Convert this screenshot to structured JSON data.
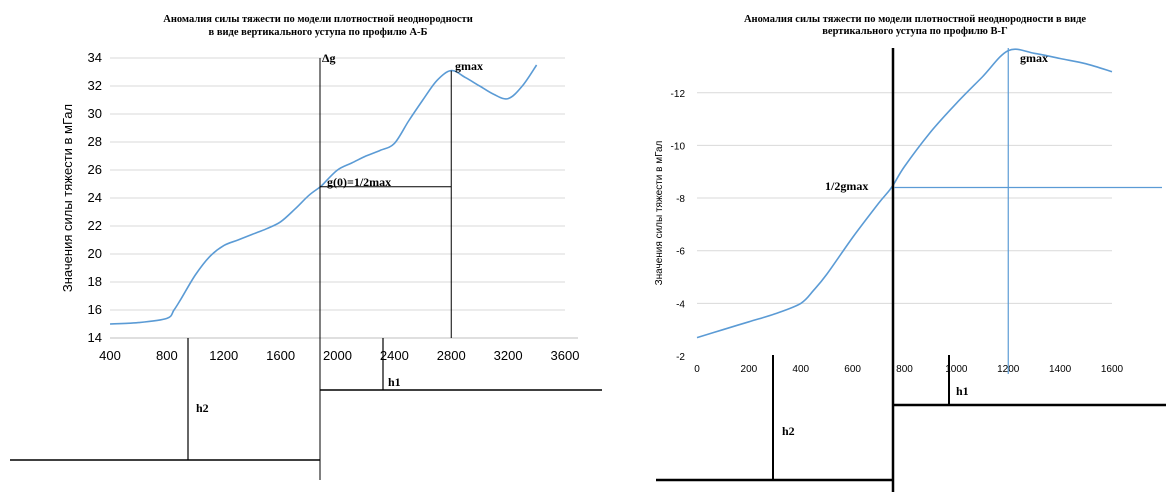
{
  "chart_data": [
    {
      "type": "line",
      "title_line1": "Аномалия силы тяжести по модели плотностной неоднородности",
      "title_line2": "в виде вертикального уступа по профилю А-Б",
      "ylabel": "Значения силы тяжести в мГал",
      "xlim": [
        400,
        3600
      ],
      "ylim": [
        14,
        34
      ],
      "x_ticks": [
        "400",
        "800",
        "1200",
        "1600",
        "2000",
        "2400",
        "2800",
        "3200",
        "3600"
      ],
      "y_ticks": [
        "14",
        "16",
        "18",
        "20",
        "22",
        "24",
        "26",
        "28",
        "30",
        "32",
        "34"
      ],
      "grid": true,
      "colors": {
        "series": "#5b9bd5"
      },
      "series": [
        {
          "x": [
            400,
            600,
            800,
            850,
            900,
            1000,
            1100,
            1200,
            1300,
            1400,
            1500,
            1600,
            1700,
            1800,
            1880,
            1900,
            2000,
            2100,
            2200,
            2300,
            2400,
            2500,
            2600,
            2700,
            2800,
            2900,
            3000,
            3100,
            3200,
            3300,
            3400
          ],
          "y": [
            15.0,
            15.1,
            15.4,
            16.0,
            16.8,
            18.5,
            19.8,
            20.6,
            21.0,
            21.4,
            21.8,
            22.3,
            23.2,
            24.2,
            24.8,
            25.0,
            26.0,
            26.5,
            27.0,
            27.4,
            27.9,
            29.5,
            31.0,
            32.4,
            33.1,
            32.6,
            32.0,
            31.4,
            31.1,
            32.0,
            33.5
          ]
        }
      ],
      "annotations": {
        "delta_g": "Δg",
        "gmax": "gmax",
        "g0": "g(0)=1/2max",
        "h1": "h1",
        "h2": "h2"
      },
      "markers": {
        "step_x": 1880,
        "g0_x_end": 2800,
        "g0_y": 24.8,
        "gmax_x": 2800,
        "gmax_y": 33.1,
        "h1_x": 2330,
        "h2_x": 970
      }
    },
    {
      "type": "line",
      "title_line1": "Аномалия силы тяжести по модели плотностной неоднородности в виде",
      "title_line2": "вертикального уступа по профилю В-Г",
      "ylabel": "Значения силы тяжести в мГал",
      "xlim": [
        0,
        1600
      ],
      "ylim": [
        -2,
        -13.7
      ],
      "x_ticks": [
        "0",
        "200",
        "400",
        "600",
        "800",
        "1000",
        "1200",
        "1400",
        "1600"
      ],
      "y_ticks": [
        "-2",
        "-4",
        "-6",
        "-8",
        "-10",
        "-12"
      ],
      "grid": true,
      "colors": {
        "series": "#5b9bd5"
      },
      "series": [
        {
          "x": [
            0,
            100,
            200,
            300,
            400,
            450,
            500,
            600,
            700,
            750,
            800,
            900,
            1000,
            1100,
            1200,
            1300,
            1400,
            1500,
            1600
          ],
          "y": [
            -2.7,
            -3.0,
            -3.3,
            -3.6,
            -4.0,
            -4.5,
            -5.1,
            -6.5,
            -7.8,
            -8.4,
            -9.2,
            -10.5,
            -11.6,
            -12.6,
            -13.6,
            -13.5,
            -13.3,
            -13.1,
            -12.8
          ]
        }
      ],
      "annotations": {
        "half_gmax": "1/2gmax",
        "gmax": "gmax",
        "h1": "h1",
        "h2": "h2"
      },
      "markers": {
        "step_x": 760,
        "half_y": -8.4,
        "gmax_x": 1200,
        "h1_x": 960,
        "h2_x": 290
      }
    }
  ]
}
